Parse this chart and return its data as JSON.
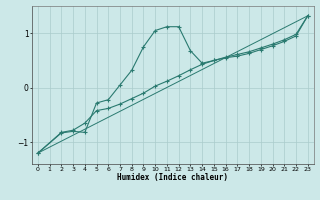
{
  "xlabel": "Humidex (Indice chaleur)",
  "bg_color": "#cce8e8",
  "grid_color": "#aacccc",
  "line_color": "#2a7a70",
  "xlim": [
    -0.5,
    23.5
  ],
  "ylim": [
    -1.4,
    1.5
  ],
  "xticks": [
    0,
    1,
    2,
    3,
    4,
    5,
    6,
    7,
    8,
    9,
    10,
    11,
    12,
    13,
    14,
    15,
    16,
    17,
    18,
    19,
    20,
    21,
    22,
    23
  ],
  "yticks": [
    -1,
    0,
    1
  ],
  "curve1_x": [
    0,
    2,
    3,
    4,
    5,
    6,
    7,
    8,
    9,
    10,
    11,
    12,
    13,
    14,
    15,
    16,
    17,
    18,
    19,
    20,
    21,
    22,
    23
  ],
  "curve1_y": [
    -1.2,
    -0.83,
    -0.8,
    -0.82,
    -0.28,
    -0.22,
    0.05,
    0.32,
    0.75,
    1.05,
    1.12,
    1.12,
    0.68,
    0.45,
    0.5,
    0.55,
    0.58,
    0.63,
    0.7,
    0.77,
    0.85,
    0.95,
    1.32
  ],
  "curve2_x": [
    0,
    2,
    3,
    4,
    5,
    6,
    7,
    8,
    9,
    10,
    11,
    12,
    13,
    14,
    15,
    16,
    17,
    18,
    19,
    20,
    21,
    22,
    23
  ],
  "curve2_y": [
    -1.2,
    -0.82,
    -0.78,
    -0.65,
    -0.42,
    -0.38,
    -0.3,
    -0.2,
    -0.1,
    0.03,
    0.12,
    0.22,
    0.33,
    0.43,
    0.5,
    0.56,
    0.61,
    0.66,
    0.73,
    0.8,
    0.88,
    0.98,
    1.32
  ],
  "line_x": [
    0,
    23
  ],
  "line_y": [
    -1.2,
    1.32
  ]
}
